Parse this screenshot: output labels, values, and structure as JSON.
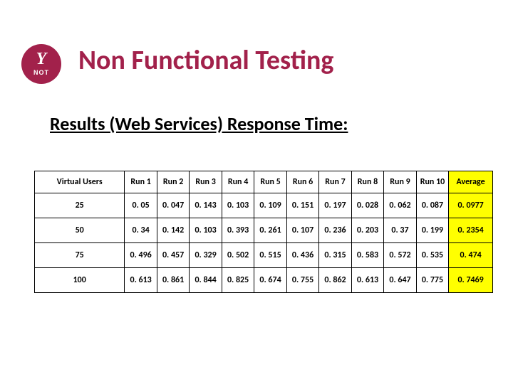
{
  "logo": {
    "bg_color": "#a2214b",
    "top_text": "Y",
    "bottom_text": "NOT"
  },
  "title": {
    "text": "Non Functional Testing",
    "color": "#a2214b"
  },
  "subtitle": "Results (Web Services) Response Time:",
  "table": {
    "type": "table",
    "header_first": "Virtual Users",
    "run_headers": [
      "Run 1",
      "Run 2",
      "Run 3",
      "Run 4",
      "Run 5",
      "Run 6",
      "Run 7",
      "Run 8",
      "Run 9",
      "Run 10"
    ],
    "avg_header": "Average",
    "columns_width": {
      "first": 120,
      "run": 40,
      "avg": 56
    },
    "avg_highlight_color": "#ffff00",
    "border_color": "#000000",
    "font_size": 12,
    "rows": [
      {
        "vu": "25",
        "runs": [
          "0. 05",
          "0. 047",
          "0. 143",
          "0. 103",
          "0. 109",
          "0. 151",
          "0. 197",
          "0. 028",
          "0. 062",
          "0. 087"
        ],
        "avg": "0. 0977"
      },
      {
        "vu": "50",
        "runs": [
          "0. 34",
          "0. 142",
          "0. 103",
          "0. 393",
          "0. 261",
          "0. 107",
          "0. 236",
          "0. 203",
          "0. 37",
          "0. 199"
        ],
        "avg": "0. 2354"
      },
      {
        "vu": "75",
        "runs": [
          "0. 496",
          "0. 457",
          "0. 329",
          "0. 502",
          "0. 515",
          "0. 436",
          "0. 315",
          "0. 583",
          "0. 572",
          "0. 535"
        ],
        "avg": "0. 474"
      },
      {
        "vu": "100",
        "runs": [
          "0. 613",
          "0. 861",
          "0. 844",
          "0. 825",
          "0. 674",
          "0. 755",
          "0. 862",
          "0. 613",
          "0. 647",
          "0. 775"
        ],
        "avg": "0. 7469"
      }
    ]
  }
}
